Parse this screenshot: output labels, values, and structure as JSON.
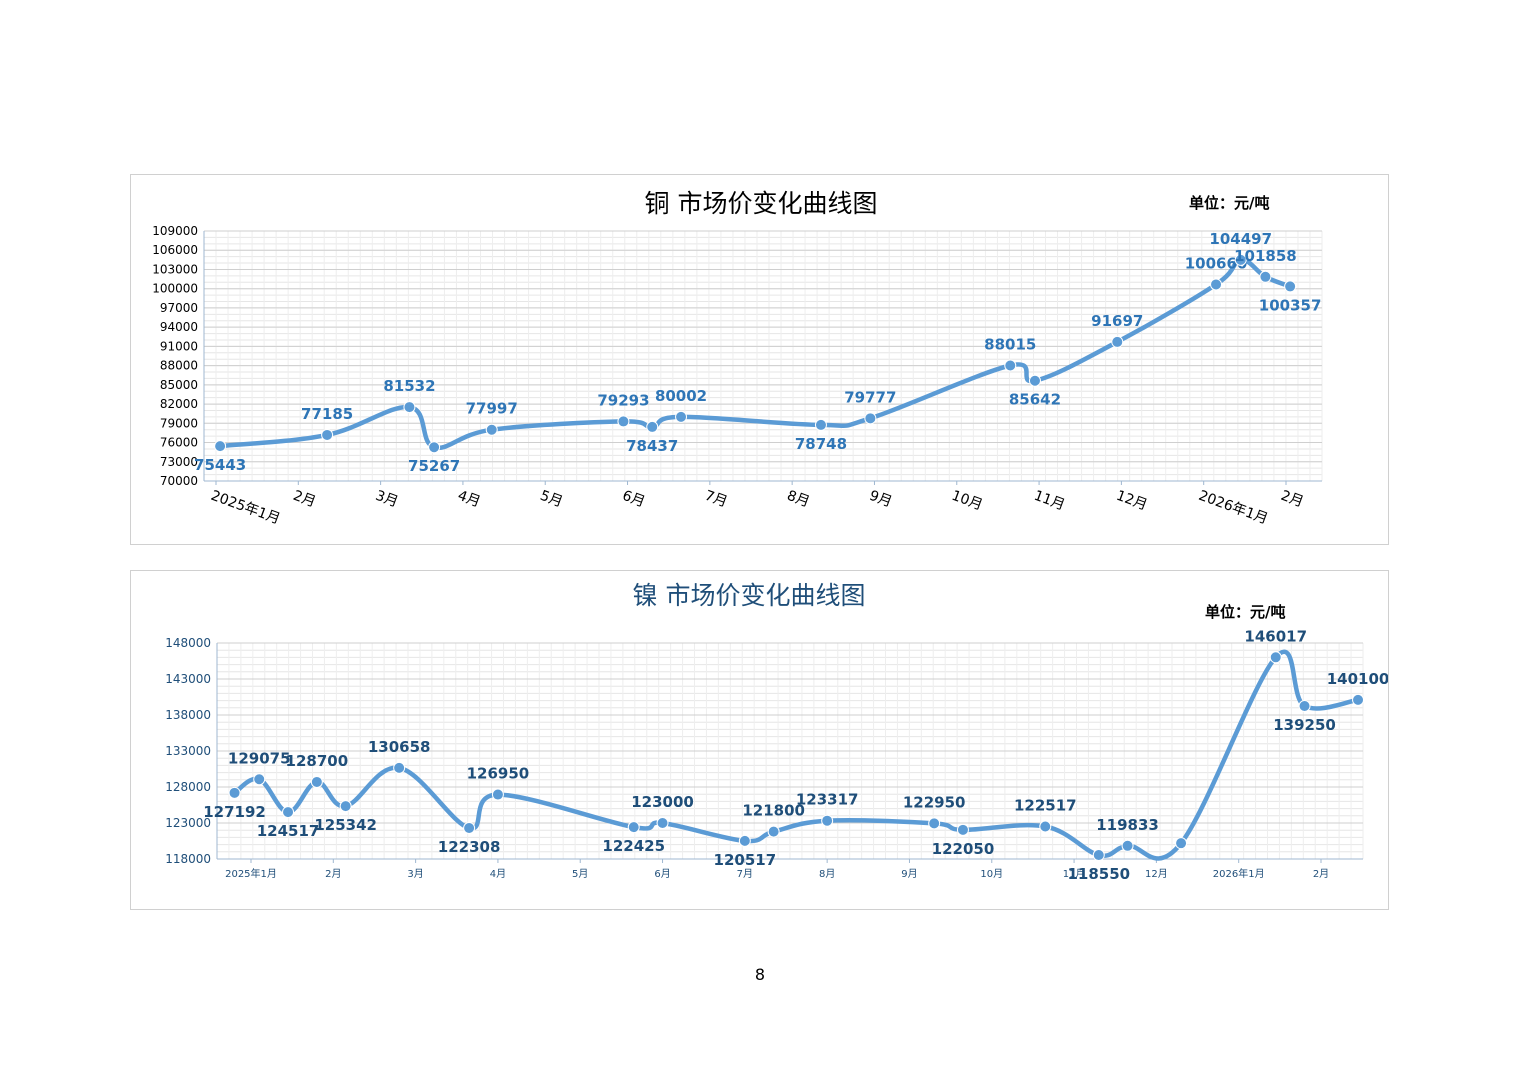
{
  "page_number": "8",
  "chart_data": [
    {
      "type": "line",
      "title": "铜  市场价变化曲线图",
      "unit": "单位：元/吨",
      "ylim": [
        70000,
        109000
      ],
      "yticks": [
        "109000",
        "106000",
        "103000",
        "100000",
        "97000",
        "94000",
        "91000",
        "88000",
        "85000",
        "82000",
        "79000",
        "76000",
        "73000",
        "70000"
      ],
      "x_labels": [
        "2025年1月",
        "2月",
        "3月",
        "4月",
        "5月",
        "6月",
        "7月",
        "8月",
        "9月",
        "10月",
        "11月",
        "12月",
        "2026年1月",
        "2月"
      ],
      "grid": true,
      "color": "#5b9bd5",
      "label_color": "#2e75b6",
      "points": [
        {
          "x": 0.05,
          "y": 75443,
          "label": "75443"
        },
        {
          "x": 1.35,
          "y": 77185,
          "label": "77185"
        },
        {
          "x": 2.35,
          "y": 81532,
          "label": "81532"
        },
        {
          "x": 2.65,
          "y": 75267,
          "label": "75267"
        },
        {
          "x": 3.35,
          "y": 77997,
          "label": "77997"
        },
        {
          "x": 4.95,
          "y": 79293,
          "label": "79293"
        },
        {
          "x": 5.3,
          "y": 78437,
          "label": "78437"
        },
        {
          "x": 5.65,
          "y": 80002,
          "label": "80002"
        },
        {
          "x": 7.35,
          "y": 78748,
          "label": "78748"
        },
        {
          "x": 7.95,
          "y": 79777,
          "label": "79777"
        },
        {
          "x": 9.65,
          "y": 88015,
          "label": "88015"
        },
        {
          "x": 9.95,
          "y": 85642,
          "label": "85642"
        },
        {
          "x": 10.95,
          "y": 91697,
          "label": "91697"
        },
        {
          "x": 12.15,
          "y": 100660,
          "label": "100660"
        },
        {
          "x": 12.45,
          "y": 104497,
          "label": "104497"
        },
        {
          "x": 12.75,
          "y": 101858,
          "label": "101858"
        },
        {
          "x": 13.05,
          "y": 100357,
          "label": "100357"
        }
      ]
    },
    {
      "type": "line",
      "title": "镍  市场价变化曲线图",
      "unit": "单位：元/吨",
      "ylim": [
        118000,
        148000
      ],
      "yticks": [
        "148000",
        "143000",
        "138000",
        "133000",
        "128000",
        "123000",
        "118000"
      ],
      "x_labels": [
        "2025年1月",
        "2月",
        "3月",
        "4月",
        "5月",
        "6月",
        "7月",
        "8月",
        "9月",
        "10月",
        "11月",
        "12月",
        "2026年1月",
        "2月"
      ],
      "grid": true,
      "color": "#5b9bd5",
      "label_color": "#1f4e79",
      "points": [
        {
          "x": -0.2,
          "y": 127192,
          "label": "127192"
        },
        {
          "x": 0.1,
          "y": 129075,
          "label": "129075"
        },
        {
          "x": 0.45,
          "y": 124517,
          "label": "124517"
        },
        {
          "x": 0.8,
          "y": 128700,
          "label": "128700"
        },
        {
          "x": 1.15,
          "y": 125342,
          "label": "125342"
        },
        {
          "x": 1.8,
          "y": 130658,
          "label": "130658"
        },
        {
          "x": 2.65,
          "y": 122308,
          "label": "122308"
        },
        {
          "x": 3.0,
          "y": 126950,
          "label": "126950"
        },
        {
          "x": 4.65,
          "y": 122425,
          "label": "122425"
        },
        {
          "x": 5.0,
          "y": 123000,
          "label": "123000"
        },
        {
          "x": 6.0,
          "y": 120517,
          "label": "120517"
        },
        {
          "x": 6.35,
          "y": 121800,
          "label": "121800"
        },
        {
          "x": 7.0,
          "y": 123317,
          "label": "123317"
        },
        {
          "x": 8.3,
          "y": 122950,
          "label": "122950"
        },
        {
          "x": 8.65,
          "y": 122050,
          "label": "122050"
        },
        {
          "x": 9.65,
          "y": 122517,
          "label": "122517"
        },
        {
          "x": 10.3,
          "y": 118550,
          "label": "118550"
        },
        {
          "x": 10.65,
          "y": 119833,
          "label": "119833"
        },
        {
          "x": 11.3,
          "y": 120200,
          "label": ""
        },
        {
          "x": 12.45,
          "y": 146017,
          "label": "146017"
        },
        {
          "x": 12.8,
          "y": 139250,
          "label": "139250"
        },
        {
          "x": 13.45,
          "y": 140100,
          "label": "140100"
        }
      ]
    }
  ]
}
